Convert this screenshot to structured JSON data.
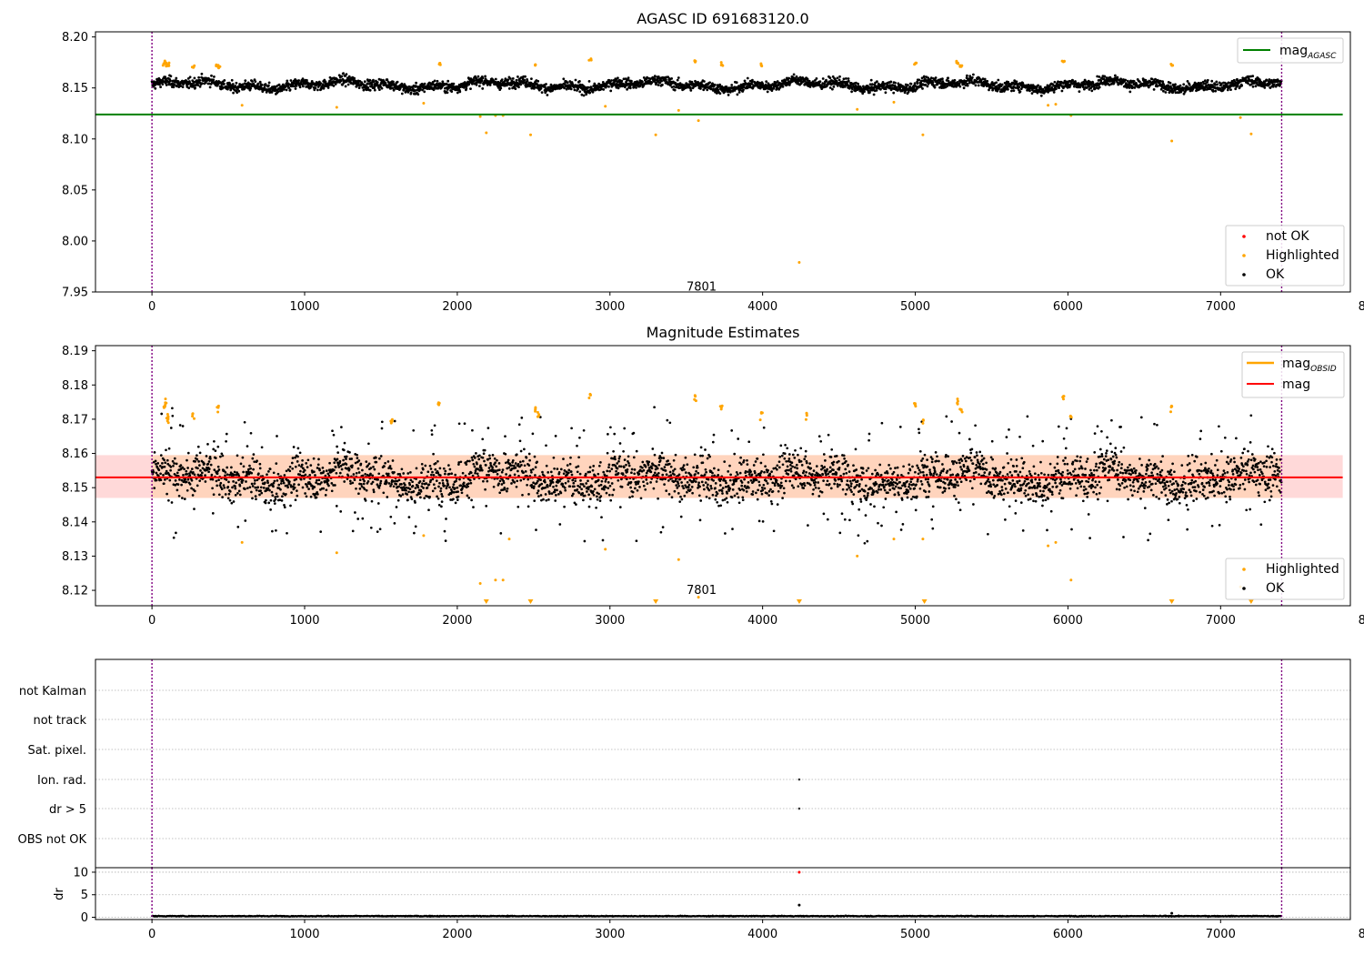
{
  "figure": {
    "colors": {
      "ok": "#000000",
      "highlighted": "#ffa500",
      "not_ok": "#ff0000",
      "mag_agasc": "#008000",
      "mag": "#ff0000",
      "mag_obsid": "#ffa500",
      "band": "#ffcccc",
      "band_inner": "#ffd2b0",
      "obs_line": "#800080",
      "grid": "#b0b0b0"
    }
  },
  "chart_data": [
    {
      "type": "scatter",
      "title": "AGASC ID 691683120.0",
      "xlabel": "",
      "ylabel": "",
      "xlim": [
        -370,
        7850
      ],
      "ylim": [
        7.95,
        8.205
      ],
      "xticks": [
        "0",
        "1000",
        "2000",
        "3000",
        "4000",
        "5000",
        "6000",
        "7000",
        "8000"
      ],
      "yticks": [
        "7.95",
        "8.00",
        "8.05",
        "8.10",
        "8.15",
        "8.20"
      ],
      "obs_boundaries": [
        0,
        7400
      ],
      "obs_annotation": {
        "label": "7801",
        "x": 3600,
        "y": 7.955
      },
      "mag_agasc": {
        "value": 8.124,
        "x": [
          -370,
          7800
        ]
      },
      "ok_series": {
        "name": "OK",
        "x_range": [
          0,
          7400
        ],
        "center": 8.153,
        "spread": 0.008,
        "n": 3400
      },
      "highlighted": {
        "name": "Highlighted",
        "clusters": [
          [
            80,
            8.174
          ],
          [
            90,
            8.176
          ],
          [
            100,
            8.172
          ],
          [
            110,
            8.173
          ],
          [
            270,
            8.171
          ],
          [
            430,
            8.172
          ],
          [
            440,
            8.17
          ],
          [
            1880,
            8.174
          ],
          [
            2510,
            8.173
          ],
          [
            2870,
            8.178
          ],
          [
            3560,
            8.176
          ],
          [
            3730,
            8.173
          ],
          [
            3990,
            8.172
          ],
          [
            5000,
            8.174
          ],
          [
            5280,
            8.175
          ],
          [
            5300,
            8.172
          ],
          [
            5970,
            8.176
          ],
          [
            6680,
            8.173
          ]
        ],
        "low": [
          [
            590,
            8.133
          ],
          [
            1210,
            8.131
          ],
          [
            1780,
            8.135
          ],
          [
            2150,
            8.122
          ],
          [
            2190,
            8.106
          ],
          [
            2250,
            8.123
          ],
          [
            2300,
            8.123
          ],
          [
            2480,
            8.104
          ],
          [
            2970,
            8.132
          ],
          [
            3300,
            8.104
          ],
          [
            3450,
            8.128
          ],
          [
            3580,
            8.118
          ],
          [
            4240,
            7.979
          ],
          [
            4620,
            8.129
          ],
          [
            4860,
            8.136
          ],
          [
            5050,
            8.104
          ],
          [
            5870,
            8.133
          ],
          [
            5920,
            8.134
          ],
          [
            6020,
            8.123
          ],
          [
            6680,
            8.098
          ],
          [
            7130,
            8.121
          ],
          [
            7200,
            8.105
          ]
        ]
      },
      "legend_lines": [
        {
          "label": "mag",
          "sub": "AGASC"
        }
      ],
      "legend_points": [
        "not OK",
        "Highlighted",
        "OK"
      ]
    },
    {
      "type": "scatter",
      "title": "Magnitude Estimates",
      "xlabel": "",
      "ylabel": "",
      "xlim": [
        -370,
        7850
      ],
      "ylim": [
        8.1155,
        8.1915
      ],
      "xticks": [
        "0",
        "1000",
        "2000",
        "3000",
        "4000",
        "5000",
        "6000",
        "7000",
        "8000"
      ],
      "yticks": [
        "8.12",
        "8.13",
        "8.14",
        "8.15",
        "8.16",
        "8.17",
        "8.18",
        "8.19"
      ],
      "obs_boundaries": [
        0,
        7400
      ],
      "obs_annotation": {
        "label": "7801",
        "x": 3600,
        "y": 8.12
      },
      "mag": {
        "value": 8.153,
        "x": [
          -370,
          7800
        ]
      },
      "band": {
        "low": 8.147,
        "high": 8.1595,
        "x": [
          -370,
          7800
        ]
      },
      "ok_series": {
        "name": "OK",
        "x_range": [
          0,
          7400
        ],
        "center": 8.153,
        "spread": 0.0085,
        "n": 3400
      },
      "highlighted": {
        "name": "Highlighted",
        "high": [
          [
            80,
            8.174
          ],
          [
            90,
            8.176
          ],
          [
            100,
            8.172
          ],
          [
            110,
            8.171
          ],
          [
            270,
            8.172
          ],
          [
            430,
            8.174
          ],
          [
            1570,
            8.17
          ],
          [
            1880,
            8.175
          ],
          [
            2510,
            8.174
          ],
          [
            2530,
            8.172
          ],
          [
            2870,
            8.178
          ],
          [
            3560,
            8.177
          ],
          [
            3730,
            8.174
          ],
          [
            3990,
            8.172
          ],
          [
            4290,
            8.172
          ],
          [
            5000,
            8.175
          ],
          [
            5050,
            8.17
          ],
          [
            5280,
            8.176
          ],
          [
            5300,
            8.173
          ],
          [
            5970,
            8.177
          ],
          [
            6020,
            8.172
          ],
          [
            6680,
            8.174
          ]
        ],
        "low": [
          [
            590,
            8.134
          ],
          [
            1210,
            8.131
          ],
          [
            1780,
            8.136
          ],
          [
            2150,
            8.122
          ],
          [
            2250,
            8.123
          ],
          [
            2300,
            8.123
          ],
          [
            2340,
            8.135
          ],
          [
            2970,
            8.132
          ],
          [
            3450,
            8.129
          ],
          [
            3580,
            8.118
          ],
          [
            4620,
            8.13
          ],
          [
            4860,
            8.135
          ],
          [
            5050,
            8.135
          ],
          [
            5870,
            8.133
          ],
          [
            5920,
            8.134
          ],
          [
            6020,
            8.123
          ],
          [
            7130,
            8.121
          ]
        ],
        "below_axis_x": [
          2190,
          2480,
          3300,
          4240,
          5060,
          6680,
          7200
        ]
      },
      "legend_lines": [
        {
          "label": "mag",
          "sub": "OBSID"
        },
        {
          "label": "mag",
          "sub": ""
        }
      ],
      "legend_points": [
        "Highlighted",
        "OK"
      ]
    },
    {
      "type": "scatter",
      "title": "",
      "xlabel": "",
      "ylabel": "",
      "xlim": [
        -370,
        7850
      ],
      "flag_labels": [
        "not Kalman",
        "not track",
        "Sat. pixel.",
        "Ion. rad.",
        "dr > 5",
        "OBS not OK"
      ],
      "flag_points": [
        {
          "flag": "Ion. rad.",
          "x": 4240
        },
        {
          "flag": "dr > 5",
          "x": 4240
        }
      ],
      "obs_boundaries": [
        0,
        7400
      ]
    },
    {
      "type": "scatter",
      "title": "",
      "xlabel": "",
      "ylabel": "dr",
      "xlim": [
        -370,
        7850
      ],
      "ylim": [
        -0.5,
        11
      ],
      "xticks": [
        "0",
        "1000",
        "2000",
        "3000",
        "4000",
        "5000",
        "6000",
        "7000",
        "8000"
      ],
      "yticks": [
        "0",
        "5",
        "10"
      ],
      "obs_boundaries": [
        0,
        7400
      ],
      "points": [
        {
          "x": 4240,
          "y": 10,
          "status": "not OK"
        },
        {
          "x": 4240,
          "y": 2.7,
          "status": "OK"
        },
        {
          "x": 6680,
          "y": 0.9,
          "status": "OK"
        }
      ],
      "baseline": {
        "center": 0.25,
        "spread": 0.15,
        "n": 2500
      }
    }
  ]
}
